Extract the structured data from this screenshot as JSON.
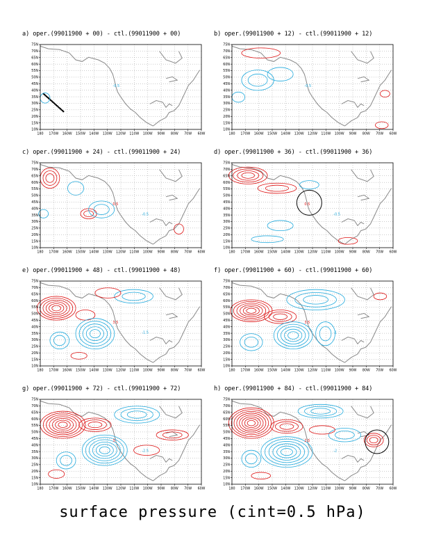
{
  "figure": {
    "caption": "surface pressure (cint=0.5 hPa)",
    "colors": {
      "positive": "#dd1111",
      "negative": "#22aadd",
      "coast": "#888888",
      "grid": "#999999",
      "frame": "#000000",
      "marker": "#000000"
    },
    "lat_labels": [
      "75N",
      "70N",
      "65N",
      "60N",
      "55N",
      "50N",
      "45N",
      "40N",
      "35N",
      "30N",
      "25N",
      "20N",
      "15N",
      "10N"
    ],
    "lon_labels": [
      "180",
      "170W",
      "160W",
      "150W",
      "140W",
      "130W",
      "120W",
      "110W",
      "100W",
      "90W",
      "80W",
      "70W",
      "60W"
    ],
    "panels": [
      {
        "id": "a",
        "title": "a) oper.(99011900 + 00) - ctl.(99011900 + 00)",
        "features": [
          "dropsonde-track"
        ],
        "contour_levels": [
          "-0.5"
        ]
      },
      {
        "id": "b",
        "title": "b) oper.(99011900 + 12) - ctl.(99011900 + 12)",
        "features": [],
        "contour_levels": [
          "-0.5"
        ]
      },
      {
        "id": "c",
        "title": "c) oper.(99011900 + 24) - ctl.(99011900 + 24)",
        "features": [],
        "contour_levels": [
          "0.5",
          "-0.5"
        ]
      },
      {
        "id": "d",
        "title": "d) oper.(99011900 + 36) - ctl.(99011900 + 36)",
        "features": [
          "circle-west-coast"
        ],
        "contour_levels": [
          "0.5",
          "-0.5"
        ]
      },
      {
        "id": "e",
        "title": "e) oper.(99011900 + 48) - ctl.(99011900 + 48)",
        "features": [],
        "contour_levels": [
          "3.5",
          "-1.5"
        ]
      },
      {
        "id": "f",
        "title": "f) oper.(99011900 + 60) - ctl.(99011900 + 60)",
        "features": [],
        "contour_levels": [
          "3.5",
          "-1"
        ]
      },
      {
        "id": "g",
        "title": "g) oper.(99011900 + 72) - ctl.(99011900 + 72)",
        "features": [],
        "contour_levels": [
          "3",
          "-2.5"
        ]
      },
      {
        "id": "h",
        "title": "h) oper.(99011900 + 84) - ctl.(99011900 + 84)",
        "features": [
          "circle-east-coast"
        ],
        "contour_levels": [
          "2.5",
          "-2"
        ]
      }
    ]
  }
}
